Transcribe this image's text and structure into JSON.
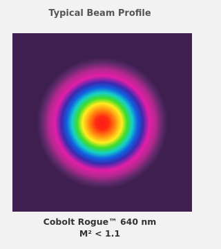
{
  "title": "Typical Beam Profile",
  "caption": {
    "model": "Cobolt Rogue™ 640 nm",
    "m2": "M² < 1.1"
  }
}
